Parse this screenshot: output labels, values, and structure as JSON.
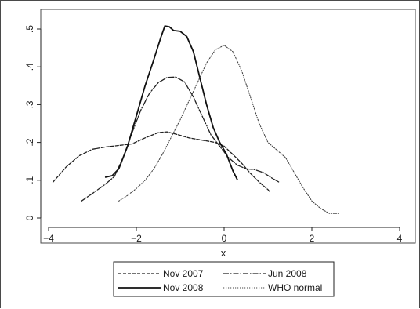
{
  "chart_data": {
    "type": "line",
    "title": "",
    "xlabel": "x",
    "ylabel": "",
    "xlim": [
      -4,
      4
    ],
    "ylim": [
      0,
      0.5
    ],
    "x_ticks": [
      -4,
      -2,
      0,
      2,
      4
    ],
    "x_tick_labels": [
      "−4",
      "−2",
      "0",
      "2",
      "4"
    ],
    "y_ticks": [
      0,
      0.1,
      0.2,
      0.3,
      0.4,
      0.5
    ],
    "y_tick_labels": [
      "0",
      ".1",
      ".2",
      ".3",
      ".4",
      ".5"
    ],
    "grid": false,
    "legend_position": "bottom",
    "series": [
      {
        "name": "Nov 2007",
        "style": "dashed",
        "color": "#222222",
        "points": [
          [
            -3.9,
            0.095
          ],
          [
            -3.6,
            0.135
          ],
          [
            -3.3,
            0.165
          ],
          [
            -3.0,
            0.182
          ],
          [
            -2.7,
            0.188
          ],
          [
            -2.4,
            0.192
          ],
          [
            -2.1,
            0.196
          ],
          [
            -1.8,
            0.212
          ],
          [
            -1.5,
            0.226
          ],
          [
            -1.3,
            0.228
          ],
          [
            -1.1,
            0.222
          ],
          [
            -0.8,
            0.212
          ],
          [
            -0.5,
            0.206
          ],
          [
            -0.2,
            0.2
          ],
          [
            0.0,
            0.19
          ],
          [
            0.2,
            0.168
          ],
          [
            0.4,
            0.145
          ],
          [
            0.6,
            0.118
          ],
          [
            0.8,
            0.095
          ],
          [
            1.0,
            0.075
          ],
          [
            1.05,
            0.068
          ]
        ]
      },
      {
        "name": "Jun 2008",
        "style": "dash-dot",
        "color": "#222222",
        "points": [
          [
            -3.25,
            0.045
          ],
          [
            -3.0,
            0.065
          ],
          [
            -2.7,
            0.09
          ],
          [
            -2.5,
            0.11
          ],
          [
            -2.3,
            0.16
          ],
          [
            -2.1,
            0.225
          ],
          [
            -1.9,
            0.285
          ],
          [
            -1.7,
            0.33
          ],
          [
            -1.5,
            0.358
          ],
          [
            -1.3,
            0.372
          ],
          [
            -1.1,
            0.373
          ],
          [
            -0.9,
            0.36
          ],
          [
            -0.7,
            0.32
          ],
          [
            -0.5,
            0.27
          ],
          [
            -0.3,
            0.22
          ],
          [
            -0.1,
            0.19
          ],
          [
            0.1,
            0.16
          ],
          [
            0.3,
            0.14
          ],
          [
            0.5,
            0.13
          ],
          [
            0.7,
            0.128
          ],
          [
            0.9,
            0.12
          ],
          [
            1.1,
            0.105
          ],
          [
            1.25,
            0.095
          ]
        ]
      },
      {
        "name": "Nov 2008",
        "style": "solid",
        "color": "#111111",
        "points": [
          [
            -2.7,
            0.108
          ],
          [
            -2.55,
            0.112
          ],
          [
            -2.4,
            0.13
          ],
          [
            -2.2,
            0.19
          ],
          [
            -2.0,
            0.27
          ],
          [
            -1.8,
            0.35
          ],
          [
            -1.6,
            0.42
          ],
          [
            -1.45,
            0.475
          ],
          [
            -1.35,
            0.508
          ],
          [
            -1.25,
            0.506
          ],
          [
            -1.15,
            0.496
          ],
          [
            -1.0,
            0.494
          ],
          [
            -0.85,
            0.48
          ],
          [
            -0.7,
            0.44
          ],
          [
            -0.55,
            0.37
          ],
          [
            -0.4,
            0.3
          ],
          [
            -0.25,
            0.24
          ],
          [
            -0.1,
            0.2
          ],
          [
            0.05,
            0.17
          ],
          [
            0.2,
            0.125
          ],
          [
            0.3,
            0.102
          ]
        ]
      },
      {
        "name": "WHO normal",
        "style": "dotted",
        "color": "#444444",
        "points": [
          [
            -2.4,
            0.045
          ],
          [
            -2.2,
            0.06
          ],
          [
            -2.0,
            0.078
          ],
          [
            -1.8,
            0.1
          ],
          [
            -1.6,
            0.13
          ],
          [
            -1.4,
            0.17
          ],
          [
            -1.2,
            0.215
          ],
          [
            -1.0,
            0.26
          ],
          [
            -0.8,
            0.31
          ],
          [
            -0.6,
            0.36
          ],
          [
            -0.4,
            0.41
          ],
          [
            -0.2,
            0.445
          ],
          [
            0.0,
            0.457
          ],
          [
            0.2,
            0.44
          ],
          [
            0.4,
            0.39
          ],
          [
            0.6,
            0.32
          ],
          [
            0.8,
            0.25
          ],
          [
            1.0,
            0.2
          ],
          [
            1.2,
            0.18
          ],
          [
            1.4,
            0.16
          ],
          [
            1.6,
            0.12
          ],
          [
            1.8,
            0.08
          ],
          [
            2.0,
            0.045
          ],
          [
            2.2,
            0.025
          ],
          [
            2.4,
            0.012
          ],
          [
            2.6,
            0.012
          ]
        ]
      }
    ]
  }
}
